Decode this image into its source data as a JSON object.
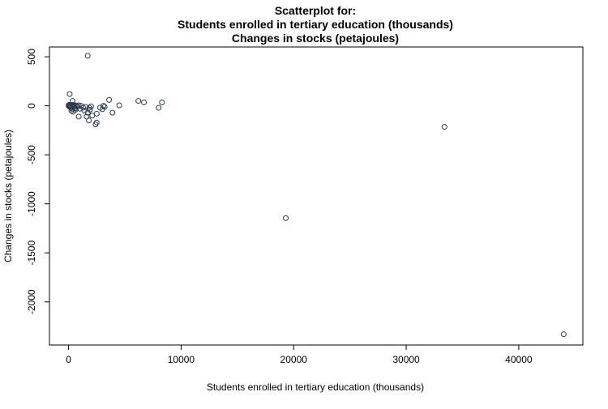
{
  "chart_data": {
    "type": "scatter",
    "title_lines": [
      "Scatterplot for:",
      "Students enrolled in tertiary education (thousands)",
      "Changes in stocks (petajoules)"
    ],
    "xlabel": "Students enrolled in tertiary education (thousands)",
    "ylabel": "Changes in stocks (petajoules)",
    "xlim": [
      -1700,
      45700
    ],
    "ylim": [
      -2440,
      600
    ],
    "xticks": [
      0,
      10000,
      20000,
      30000,
      40000
    ],
    "xtick_labels": [
      "0",
      "10000",
      "20000",
      "30000",
      "40000"
    ],
    "yticks": [
      500,
      0,
      -500,
      -1000,
      -1500,
      -2000
    ],
    "ytick_labels": [
      "500",
      "0",
      "-500",
      "-1000",
      "-1500",
      "-2000"
    ],
    "grid": false,
    "marker_color": "#2b3a4f",
    "points": [
      {
        "x": 1700,
        "y": 510
      },
      {
        "x": 100,
        "y": 120
      },
      {
        "x": 350,
        "y": 50
      },
      {
        "x": 0,
        "y": 5
      },
      {
        "x": 30,
        "y": -5
      },
      {
        "x": 50,
        "y": 10
      },
      {
        "x": 80,
        "y": 0
      },
      {
        "x": 120,
        "y": -10
      },
      {
        "x": 150,
        "y": 5
      },
      {
        "x": 200,
        "y": -20
      },
      {
        "x": 250,
        "y": 0
      },
      {
        "x": 300,
        "y": -30
      },
      {
        "x": 350,
        "y": 10
      },
      {
        "x": 400,
        "y": -5
      },
      {
        "x": 450,
        "y": 0
      },
      {
        "x": 500,
        "y": -15
      },
      {
        "x": 550,
        "y": 5
      },
      {
        "x": 600,
        "y": -25
      },
      {
        "x": 700,
        "y": 0
      },
      {
        "x": 800,
        "y": -10
      },
      {
        "x": 900,
        "y": 5
      },
      {
        "x": 250,
        "y": -50
      },
      {
        "x": 400,
        "y": -60
      },
      {
        "x": 600,
        "y": -40
      },
      {
        "x": 900,
        "y": -110
      },
      {
        "x": 1000,
        "y": -30
      },
      {
        "x": 1100,
        "y": 0
      },
      {
        "x": 1300,
        "y": -20
      },
      {
        "x": 1400,
        "y": -50
      },
      {
        "x": 1500,
        "y": -10
      },
      {
        "x": 1600,
        "y": -110
      },
      {
        "x": 1700,
        "y": -70
      },
      {
        "x": 1800,
        "y": -150
      },
      {
        "x": 1850,
        "y": -20
      },
      {
        "x": 1900,
        "y": -40
      },
      {
        "x": 2000,
        "y": -5
      },
      {
        "x": 2100,
        "y": -100
      },
      {
        "x": 2400,
        "y": -190
      },
      {
        "x": 2500,
        "y": -170
      },
      {
        "x": 2500,
        "y": -80
      },
      {
        "x": 2800,
        "y": -20
      },
      {
        "x": 3000,
        "y": -35
      },
      {
        "x": 3100,
        "y": 0
      },
      {
        "x": 3200,
        "y": -10
      },
      {
        "x": 3600,
        "y": 60
      },
      {
        "x": 3900,
        "y": -70
      },
      {
        "x": 4500,
        "y": 5
      },
      {
        "x": 6200,
        "y": 50
      },
      {
        "x": 6700,
        "y": 35
      },
      {
        "x": 8000,
        "y": -20
      },
      {
        "x": 8300,
        "y": 35
      },
      {
        "x": 19300,
        "y": -1145
      },
      {
        "x": 33400,
        "y": -215
      },
      {
        "x": 44000,
        "y": -2330
      }
    ]
  }
}
